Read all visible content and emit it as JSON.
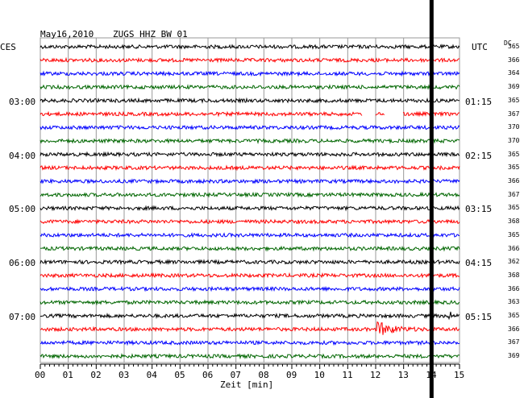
{
  "header": {
    "date": "May16,2010",
    "station": "ZUGS HHZ BW 01"
  },
  "left_zone": "CES",
  "right_zone": "UTC",
  "dc_header": "DC",
  "colors": {
    "black": "#000000",
    "red": "#ff0000",
    "blue": "#0000ff",
    "green": "#006600"
  },
  "chart_data": {
    "type": "line",
    "title": "May16,2010   ZUGS HHZ BW 01",
    "xlabel": "Zeit [min]",
    "x_ticks": [
      "00",
      "01",
      "02",
      "03",
      "04",
      "05",
      "06",
      "07",
      "08",
      "09",
      "10",
      "11",
      "12",
      "13",
      "14",
      "15"
    ],
    "xlim": [
      0,
      15
    ],
    "grid": true,
    "trace_colors": [
      "black",
      "red",
      "blue",
      "green"
    ],
    "trace_count": 24,
    "left_time_labels": [
      "03:00",
      "04:00",
      "05:00",
      "06:00",
      "07:00"
    ],
    "right_time_labels": [
      "01:15",
      "02:15",
      "03:15",
      "04:15",
      "05:15"
    ],
    "dc_values": [
      365,
      366,
      364,
      369,
      365,
      367,
      370,
      370,
      365,
      365,
      366,
      367,
      365,
      368,
      365,
      366,
      362,
      368,
      366,
      363,
      365,
      366,
      367,
      369
    ],
    "current_time_marker_min": 14.0,
    "events": [
      {
        "trace": 5,
        "type": "gap",
        "x_min": [
          11.53,
          11.98
        ]
      },
      {
        "trace": 5,
        "type": "gap",
        "x_min": [
          12.33,
          12.98
        ]
      },
      {
        "trace": 21,
        "type": "earthquake",
        "x_min": 12.05
      },
      {
        "trace": 20,
        "type": "spike",
        "x_min": 14.65
      }
    ]
  }
}
